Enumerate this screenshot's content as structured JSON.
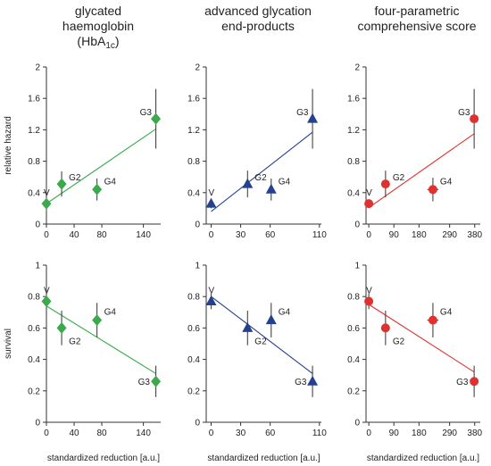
{
  "colors": {
    "hba1c": "#3aaa4a",
    "age": "#24418f",
    "score": "#e03030",
    "axis": "#333333",
    "errorbar": "#444444"
  },
  "titles": [
    {
      "line1": "glycated",
      "line2": "haemoglobin",
      "line3_pre": "(HbA",
      "line3_sub": "1c",
      "line3_post": ")"
    },
    {
      "line1": "advanced glycation",
      "line2": "end-products"
    },
    {
      "line1": "four-parametric",
      "line2": "comprehensive score"
    }
  ],
  "row_labels": [
    "relative hazard",
    "survival"
  ],
  "xlabel": "standardized reduction [a.u.]",
  "chart_data": [
    {
      "type": "scatter",
      "panel": "HbA1c relative hazard",
      "marker": "diamond",
      "color": "#3aaa4a",
      "xlim": [
        0,
        165
      ],
      "xticks": [
        0,
        40,
        80,
        140
      ],
      "ylim": [
        0,
        2
      ],
      "yticks": [
        0,
        0.4,
        0.8,
        1.2,
        1.6,
        2
      ],
      "ylabel": "relative hazard",
      "xlabel": "",
      "points": [
        {
          "label": "V",
          "x": 0,
          "y": 0.26,
          "err": 0.06
        },
        {
          "label": "G2",
          "x": 22,
          "y": 0.51,
          "err": 0.16
        },
        {
          "label": "G4",
          "x": 73,
          "y": 0.44,
          "err": 0.14
        },
        {
          "label": "G3",
          "x": 158,
          "y": 1.34,
          "err": 0.38
        }
      ],
      "fit": [
        [
          0,
          0.26
        ],
        [
          158,
          1.21
        ]
      ]
    },
    {
      "type": "scatter",
      "panel": "AGE relative hazard",
      "marker": "triangle",
      "color": "#24418f",
      "xlim": [
        -5,
        112
      ],
      "xticks": [
        0,
        30,
        60,
        110
      ],
      "ylim": [
        0,
        2
      ],
      "yticks": [
        0,
        0.4,
        0.8,
        1.2,
        1.6,
        2
      ],
      "ylabel": "",
      "xlabel": "",
      "points": [
        {
          "label": "V",
          "x": 0,
          "y": 0.26,
          "err": 0.06
        },
        {
          "label": "G2",
          "x": 37,
          "y": 0.51,
          "err": 0.17
        },
        {
          "label": "G4",
          "x": 61,
          "y": 0.44,
          "err": 0.14
        },
        {
          "label": "G3",
          "x": 103,
          "y": 1.34,
          "err": 0.38
        }
      ],
      "fit": [
        [
          0,
          0.16
        ],
        [
          103,
          1.17
        ]
      ]
    },
    {
      "type": "scatter",
      "panel": "score relative hazard",
      "marker": "circle",
      "color": "#e03030",
      "xlim": [
        -10,
        400
      ],
      "xticks": [
        0,
        90,
        180,
        290,
        380
      ],
      "ylim": [
        0,
        2
      ],
      "yticks": [
        0,
        0.4,
        0.8,
        1.2,
        1.6,
        2
      ],
      "ylabel": "",
      "xlabel": "",
      "points": [
        {
          "label": "V",
          "x": 0,
          "y": 0.26,
          "err": 0.05
        },
        {
          "label": "G2",
          "x": 60,
          "y": 0.51,
          "err": 0.17
        },
        {
          "label": "G4",
          "x": 230,
          "y": 0.44,
          "err": 0.15,
          "xerr": 20
        },
        {
          "label": "G3",
          "x": 378,
          "y": 1.34,
          "err": 0.38
        }
      ],
      "fit": [
        [
          0,
          0.21
        ],
        [
          378,
          1.15
        ]
      ]
    },
    {
      "type": "scatter",
      "panel": "HbA1c survival",
      "marker": "diamond",
      "color": "#3aaa4a",
      "xlim": [
        0,
        165
      ],
      "xticks": [
        0,
        40,
        80,
        140
      ],
      "ylim": [
        0,
        1
      ],
      "yticks": [
        0,
        0.2,
        0.4,
        0.6,
        0.8,
        1
      ],
      "ylabel": "survival",
      "xlabel": "standardized reduction [a.u.]",
      "points": [
        {
          "label": "V",
          "x": 0,
          "y": 0.77,
          "err": 0.05
        },
        {
          "label": "G2",
          "x": 22,
          "y": 0.6,
          "err": 0.11
        },
        {
          "label": "G4",
          "x": 73,
          "y": 0.65,
          "err": 0.11
        },
        {
          "label": "G3",
          "x": 158,
          "y": 0.26,
          "err": 0.1
        }
      ],
      "fit": [
        [
          0,
          0.74
        ],
        [
          158,
          0.31
        ]
      ]
    },
    {
      "type": "scatter",
      "panel": "AGE survival",
      "marker": "triangle",
      "color": "#24418f",
      "xlim": [
        -5,
        112
      ],
      "xticks": [
        0,
        30,
        60,
        110
      ],
      "ylim": [
        0,
        1
      ],
      "yticks": [
        0,
        0.2,
        0.4,
        0.6,
        0.8,
        1
      ],
      "ylabel": "",
      "xlabel": "standardized reduction [a.u.]",
      "points": [
        {
          "label": "V",
          "x": 0,
          "y": 0.77,
          "err": 0.05
        },
        {
          "label": "G2",
          "x": 37,
          "y": 0.6,
          "err": 0.11
        },
        {
          "label": "G4",
          "x": 61,
          "y": 0.65,
          "err": 0.11
        },
        {
          "label": "G3",
          "x": 103,
          "y": 0.26,
          "err": 0.1
        }
      ],
      "fit": [
        [
          0,
          0.8
        ],
        [
          103,
          0.31
        ]
      ]
    },
    {
      "type": "scatter",
      "panel": "score survival",
      "marker": "circle",
      "color": "#e03030",
      "xlim": [
        -10,
        400
      ],
      "xticks": [
        0,
        90,
        180,
        290,
        380
      ],
      "ylim": [
        0,
        1
      ],
      "yticks": [
        0,
        0.2,
        0.4,
        0.6,
        0.8,
        1
      ],
      "ylabel": "",
      "xlabel": "standardized reduction [a.u.]",
      "points": [
        {
          "label": "V",
          "x": 0,
          "y": 0.77,
          "err": 0.05
        },
        {
          "label": "G2",
          "x": 60,
          "y": 0.6,
          "err": 0.11
        },
        {
          "label": "G4",
          "x": 230,
          "y": 0.65,
          "err": 0.11,
          "xerr": 20
        },
        {
          "label": "G3",
          "x": 378,
          "y": 0.26,
          "err": 0.1
        }
      ],
      "fit": [
        [
          0,
          0.75
        ],
        [
          378,
          0.32
        ]
      ]
    }
  ]
}
